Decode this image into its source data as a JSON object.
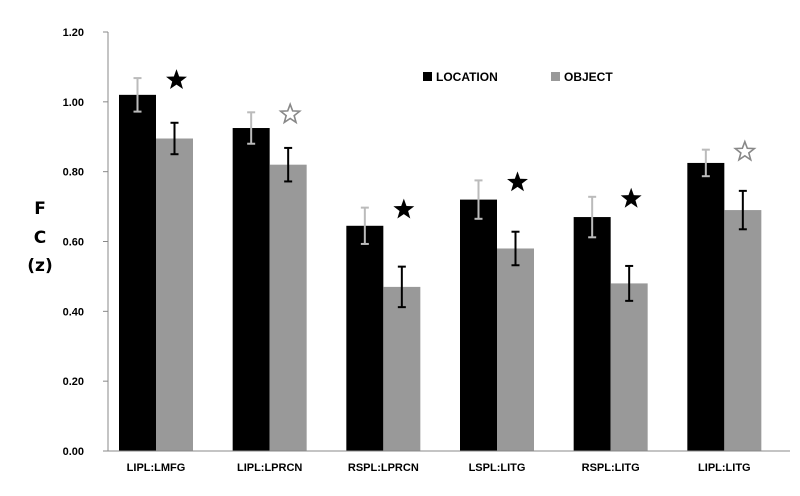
{
  "chart_data": {
    "type": "bar",
    "title": "",
    "xlabel": "",
    "ylabel_lines": [
      "F",
      "C",
      "(z)"
    ],
    "ylim": [
      0,
      1.2
    ],
    "yticks": [
      "0.00",
      "0.20",
      "0.40",
      "0.60",
      "0.80",
      "1.00",
      "1.20"
    ],
    "grid": false,
    "legend_position": "top-right",
    "categories": [
      "LIPL:LMFG",
      "LIPL:LPRCN",
      "RSPL:LPRCN",
      "LSPL:LITG",
      "RSPL:LITG",
      "LIPL:LITG"
    ],
    "series": [
      {
        "name": "LOCATION",
        "color": "#000000",
        "values": [
          1.02,
          0.925,
          0.645,
          0.72,
          0.67,
          0.825
        ],
        "errors": [
          0.048,
          0.045,
          0.052,
          0.055,
          0.058,
          0.038
        ]
      },
      {
        "name": "OBJECT",
        "color": "#999999",
        "values": [
          0.895,
          0.82,
          0.47,
          0.58,
          0.48,
          0.69
        ],
        "errors": [
          0.045,
          0.048,
          0.058,
          0.048,
          0.05,
          0.055
        ]
      }
    ],
    "significance": [
      {
        "category": "LIPL:LMFG",
        "marker": "filled-star"
      },
      {
        "category": "LIPL:LPRCN",
        "marker": "open-star"
      },
      {
        "category": "RSPL:LPRCN",
        "marker": "filled-star"
      },
      {
        "category": "LSPL:LITG",
        "marker": "filled-star"
      },
      {
        "category": "RSPL:LITG",
        "marker": "filled-star"
      },
      {
        "category": "LIPL:LITG",
        "marker": "open-star"
      }
    ]
  }
}
